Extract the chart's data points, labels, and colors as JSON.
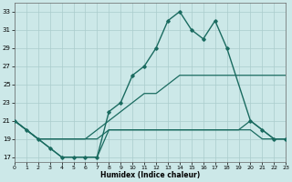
{
  "xlabel": "Humidex (Indice chaleur)",
  "xlim": [
    0,
    23
  ],
  "ylim": [
    16.5,
    34
  ],
  "yticks": [
    17,
    19,
    21,
    23,
    25,
    27,
    29,
    31,
    33
  ],
  "xticks": [
    0,
    1,
    2,
    3,
    4,
    5,
    6,
    7,
    8,
    9,
    10,
    11,
    12,
    13,
    14,
    15,
    16,
    17,
    18,
    19,
    20,
    21,
    22,
    23
  ],
  "background_color": "#cce8e8",
  "grid_color": "#aacccc",
  "line_color": "#1a6b60",
  "lines": [
    {
      "x": [
        0,
        1,
        2,
        3,
        4,
        5,
        6,
        7,
        8,
        9,
        10,
        11,
        12,
        13,
        14,
        15,
        16,
        17,
        18,
        20,
        21,
        22,
        23
      ],
      "y": [
        21,
        20,
        19,
        18,
        17,
        17,
        17,
        17,
        22,
        23,
        26,
        27,
        29,
        32,
        33,
        31,
        30,
        32,
        29,
        21,
        20,
        19,
        19
      ],
      "marker": true,
      "linewidth": 1.0
    },
    {
      "x": [
        0,
        1,
        2,
        3,
        4,
        5,
        6,
        7,
        8,
        9,
        10,
        11,
        12,
        13,
        14,
        15,
        16,
        17,
        18,
        19,
        20,
        21,
        22,
        23
      ],
      "y": [
        21,
        20,
        19,
        19,
        19,
        19,
        19,
        20,
        21,
        22,
        23,
        24,
        24,
        25,
        26,
        26,
        26,
        26,
        26,
        26,
        26,
        26,
        26,
        26
      ],
      "marker": false,
      "linewidth": 0.9
    },
    {
      "x": [
        0,
        1,
        2,
        3,
        4,
        5,
        6,
        7,
        8,
        9,
        10,
        11,
        12,
        13,
        14,
        15,
        16,
        17,
        18,
        19,
        20,
        21,
        22,
        23
      ],
      "y": [
        21,
        20,
        19,
        19,
        19,
        19,
        19,
        19,
        20,
        20,
        20,
        20,
        20,
        20,
        20,
        20,
        20,
        20,
        20,
        20,
        21,
        20,
        19,
        19
      ],
      "marker": false,
      "linewidth": 0.9
    },
    {
      "x": [
        0,
        1,
        2,
        3,
        4,
        5,
        6,
        7,
        8,
        9,
        10,
        11,
        12,
        13,
        14,
        15,
        16,
        17,
        18,
        19,
        20,
        21,
        22,
        23
      ],
      "y": [
        21,
        20,
        19,
        18,
        17,
        17,
        17,
        17,
        20,
        20,
        20,
        20,
        20,
        20,
        20,
        20,
        20,
        20,
        20,
        20,
        20,
        19,
        19,
        19
      ],
      "marker": false,
      "linewidth": 0.9
    }
  ]
}
